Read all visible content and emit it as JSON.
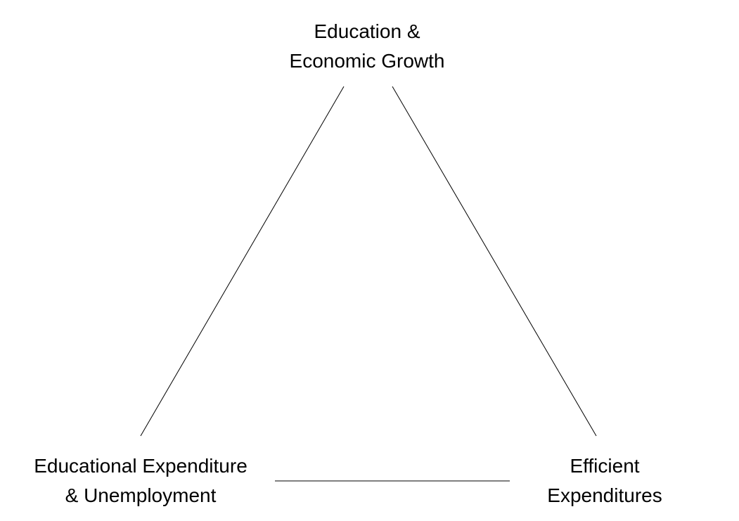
{
  "diagram": {
    "nodes": {
      "top": {
        "line1": "Education &",
        "line2": "Economic Growth"
      },
      "left": {
        "line1": "Educational Expenditure",
        "line2": "& Unemployment"
      },
      "right": {
        "line1": "Efficient",
        "line2": "Expenditures"
      }
    },
    "edges": [
      {
        "from": "top",
        "to": "left"
      },
      {
        "from": "top",
        "to": "right"
      },
      {
        "from": "left",
        "to": "right"
      }
    ],
    "colors": {
      "line": "#000000",
      "text": "#000000",
      "background": "#ffffff"
    }
  }
}
